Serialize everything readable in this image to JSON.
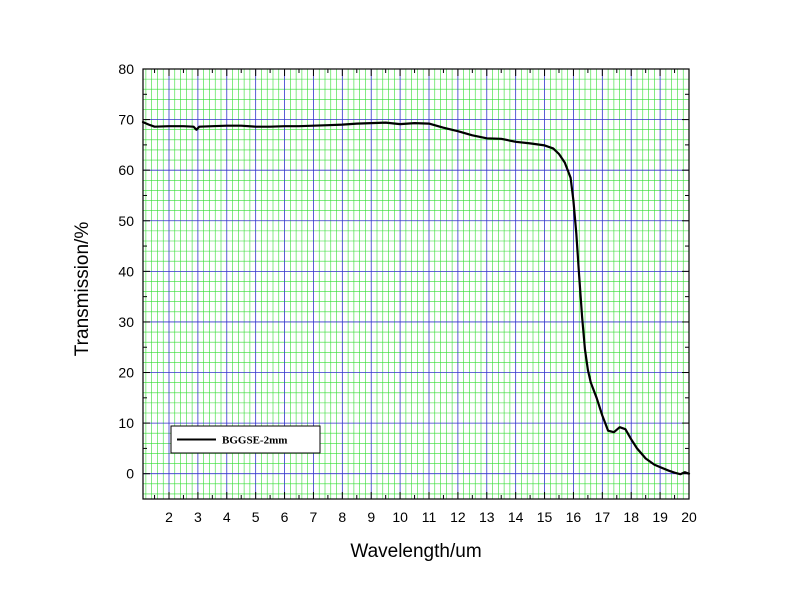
{
  "chart_data": {
    "type": "line",
    "xlabel": "Wavelength/um",
    "ylabel": "Transmission/%",
    "xlim": [
      1.1,
      20.0
    ],
    "ylim": [
      -5,
      80
    ],
    "xticks": [
      2,
      3,
      4,
      5,
      6,
      7,
      8,
      9,
      10,
      11,
      12,
      13,
      14,
      15,
      16,
      17,
      18,
      19,
      20
    ],
    "yticks": [
      0,
      10,
      20,
      30,
      40,
      50,
      60,
      70,
      80
    ],
    "x_tick_labels": [
      "2",
      "3",
      "4",
      "5",
      "6",
      "7",
      "8",
      "9",
      "10",
      "11",
      "12",
      "13",
      "14",
      "15",
      "16",
      "17",
      "18",
      "19",
      "20"
    ],
    "y_tick_labels": [
      "0",
      "10",
      "20",
      "30",
      "40",
      "50",
      "60",
      "70",
      "80"
    ],
    "grid": {
      "major": true,
      "minor": true,
      "major_color": "#3333cc",
      "minor_color": "#33dd33"
    },
    "legend_position": "bottom-left",
    "series": [
      {
        "name": "BGGSE-2mm",
        "color": "#000000",
        "x": [
          1.1,
          1.3,
          1.5,
          2.0,
          2.5,
          2.85,
          2.95,
          3.05,
          3.5,
          4.0,
          4.5,
          5.0,
          5.5,
          6.0,
          6.5,
          7.0,
          7.5,
          8.0,
          8.5,
          9.0,
          9.5,
          10.0,
          10.5,
          11.0,
          11.5,
          12.0,
          12.5,
          13.0,
          13.5,
          14.0,
          14.5,
          15.0,
          15.3,
          15.5,
          15.7,
          15.9,
          16.0,
          16.1,
          16.2,
          16.3,
          16.4,
          16.5,
          16.6,
          16.8,
          17.0,
          17.2,
          17.4,
          17.6,
          17.8,
          18.0,
          18.2,
          18.5,
          18.8,
          19.0,
          19.3,
          19.5,
          19.7,
          19.85,
          20.0
        ],
        "y": [
          69.5,
          69.0,
          68.6,
          68.7,
          68.7,
          68.6,
          68.0,
          68.6,
          68.7,
          68.8,
          68.8,
          68.6,
          68.6,
          68.7,
          68.7,
          68.8,
          68.9,
          69.0,
          69.2,
          69.3,
          69.4,
          69.1,
          69.3,
          69.2,
          68.4,
          67.7,
          66.9,
          66.3,
          66.2,
          65.6,
          65.3,
          64.9,
          64.3,
          63.2,
          61.5,
          58.5,
          54.0,
          47.5,
          39.0,
          31.0,
          24.5,
          20.5,
          18.0,
          15.0,
          11.5,
          8.5,
          8.2,
          9.2,
          8.8,
          6.8,
          5.0,
          3.0,
          1.8,
          1.3,
          0.6,
          0.2,
          -0.1,
          0.3,
          0.0
        ]
      }
    ]
  }
}
